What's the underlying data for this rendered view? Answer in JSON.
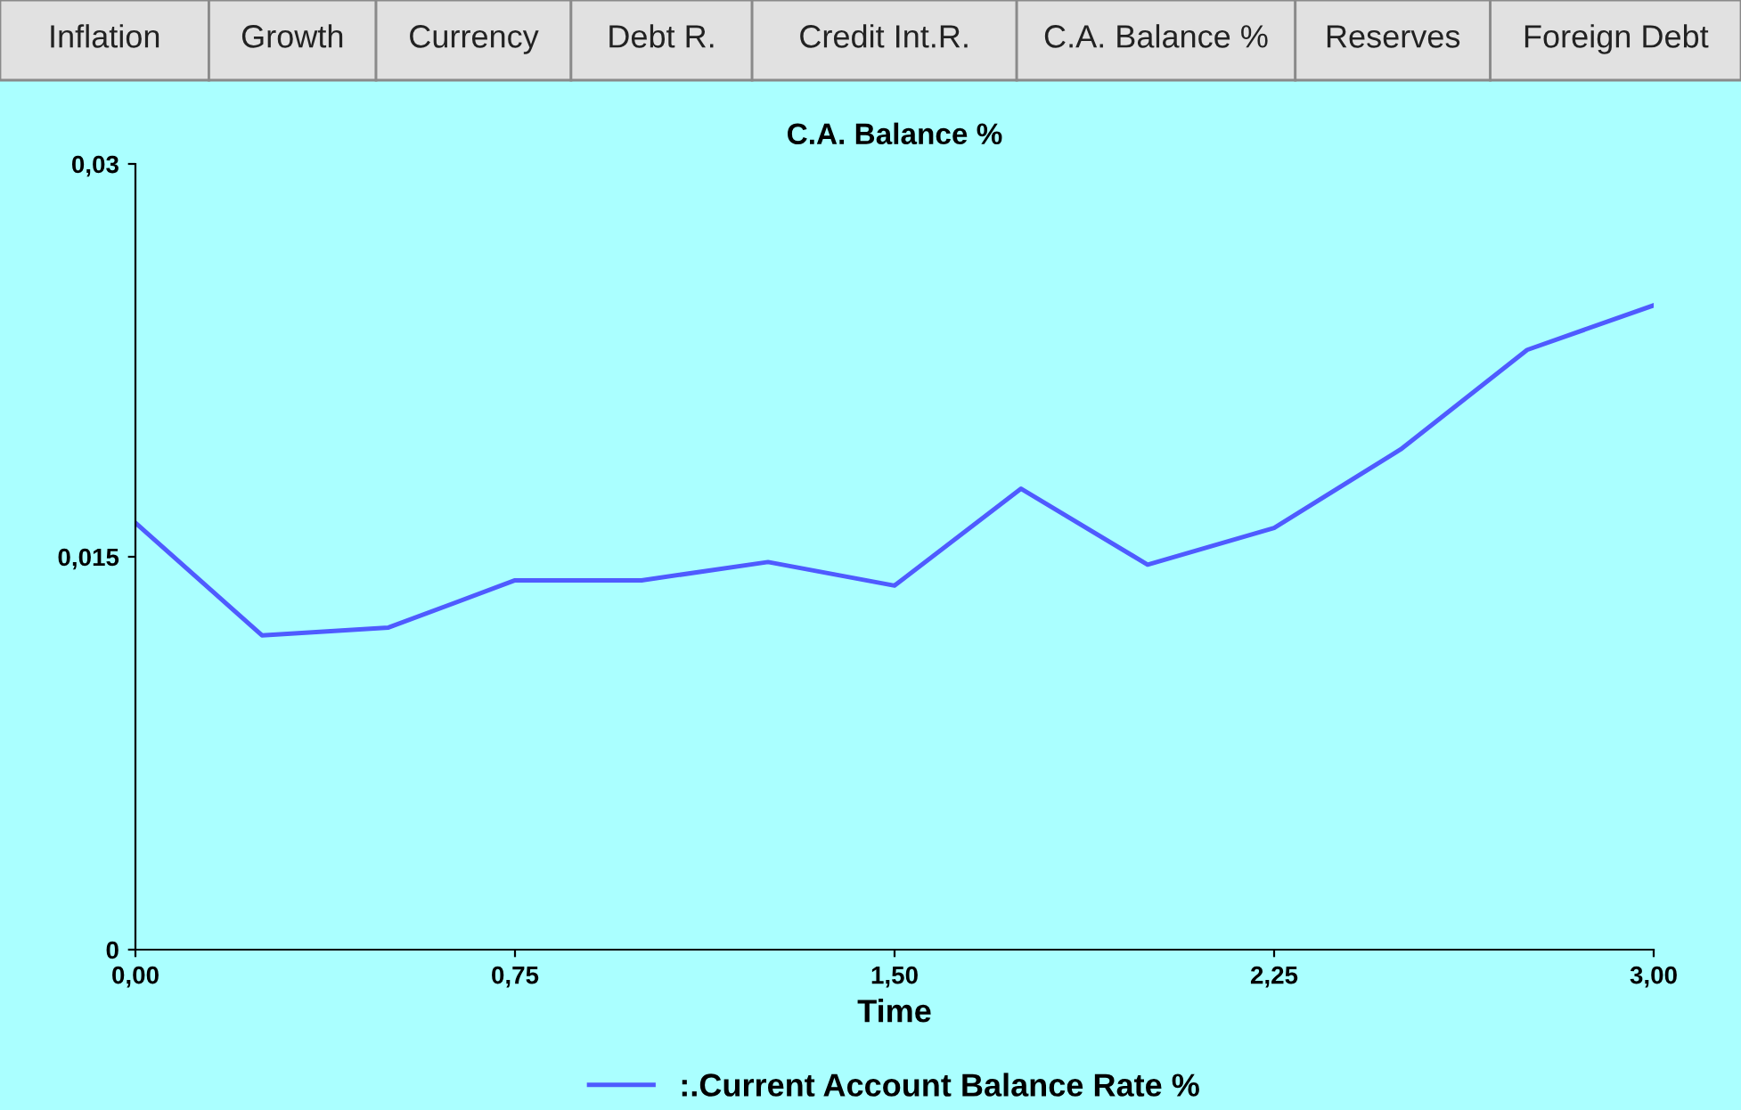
{
  "chart_data": {
    "type": "line",
    "title": "C.A. Balance %",
    "xlabel": "Time",
    "annotations": [
      "Inflation",
      "Growth",
      "Currency",
      "Debt R.",
      "Credit Int.R.",
      "C.A. Balance %",
      "Reserves",
      "Foreign Debt"
    ],
    "x": [
      0,
      0.25,
      0.5,
      0.75,
      1.0,
      1.25,
      1.5,
      1.75,
      2.0,
      2.25,
      2.5,
      2.75,
      3.0
    ],
    "series": [
      {
        "name": ":.Current Account Balance Rate %",
        "color": "#4f5bff",
        "values": [
          0.0163,
          0.012,
          0.0123,
          0.0141,
          0.0141,
          0.0148,
          0.0139,
          0.0176,
          0.0147,
          0.0161,
          0.0191,
          0.0229,
          0.0246
        ]
      }
    ],
    "xlim": [
      0,
      3
    ],
    "ylim": [
      0,
      0.03
    ],
    "xticks": [
      {
        "value": 0,
        "label": "0,00"
      },
      {
        "value": 0.75,
        "label": "0,75"
      },
      {
        "value": 1.5,
        "label": "1,50"
      },
      {
        "value": 2.25,
        "label": "2,25"
      },
      {
        "value": 3,
        "label": "3,00"
      }
    ],
    "yticks": [
      {
        "value": 0,
        "label": "0"
      },
      {
        "value": 0.015,
        "label": "0,015"
      },
      {
        "value": 0.03,
        "label": "0,03"
      }
    ],
    "grid": false,
    "legend": "bottom",
    "marker": "none",
    "line_style": "solid"
  }
}
